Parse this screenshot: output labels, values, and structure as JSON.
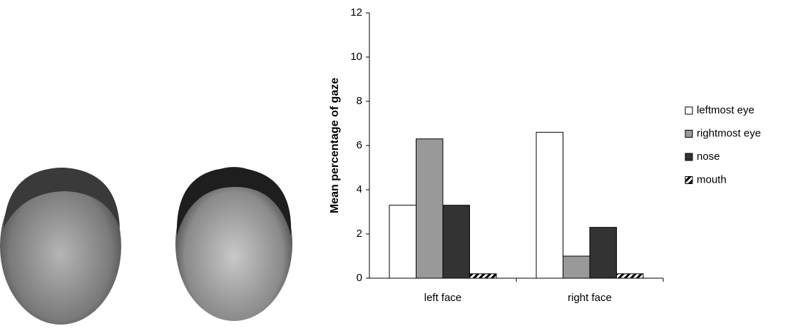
{
  "chart_data": {
    "type": "bar",
    "ylabel": "Mean percentage of gaze",
    "categories": [
      "left face",
      "right face"
    ],
    "series": [
      {
        "name": "leftmost eye",
        "color": "#ffffff",
        "values": [
          3.3,
          6.6
        ]
      },
      {
        "name": "rightmost eye",
        "color": "#999999",
        "values": [
          6.3,
          1.0
        ]
      },
      {
        "name": "nose",
        "color": "#333333",
        "values": [
          3.3,
          2.3
        ]
      },
      {
        "name": "mouth",
        "color": "#000000",
        "pattern": "hatch",
        "values": [
          0.2,
          0.2
        ]
      }
    ],
    "ylim": [
      0,
      12
    ],
    "yticks": [
      0,
      2,
      4,
      6,
      8,
      10,
      12
    ],
    "grid": false,
    "legend": "right"
  }
}
